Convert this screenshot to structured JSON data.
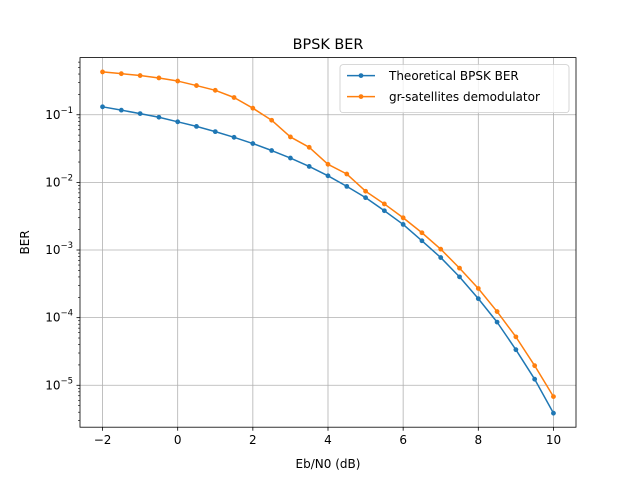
{
  "chart_data": {
    "type": "line",
    "title": "BPSK BER",
    "xlabel": "Eb/N0 (dB)",
    "ylabel": "BER",
    "xlim": [
      -2.6,
      10.6
    ],
    "ylim": [
      2.4e-06,
      0.7
    ],
    "yscale": "log",
    "grid": true,
    "legend_position": "top-right",
    "x_ticks": [
      -2,
      0,
      2,
      4,
      6,
      8,
      10
    ],
    "x_tick_labels": [
      "−2",
      "0",
      "2",
      "4",
      "6",
      "8",
      "10"
    ],
    "y_ticks": [
      1e-05,
      0.0001,
      0.001,
      0.01,
      0.1
    ],
    "y_tick_labels": [
      {
        "base": "10",
        "exp": "−5"
      },
      {
        "base": "10",
        "exp": "−4"
      },
      {
        "base": "10",
        "exp": "−3"
      },
      {
        "base": "10",
        "exp": "−2"
      },
      {
        "base": "10",
        "exp": "−1"
      }
    ],
    "x": [
      -2,
      -1.5,
      -1,
      -0.5,
      0,
      0.5,
      1,
      1.5,
      2,
      2.5,
      3,
      3.5,
      4,
      4.5,
      5,
      5.5,
      6,
      6.5,
      7,
      7.5,
      8,
      8.5,
      9,
      9.5,
      10
    ],
    "series": [
      {
        "name": "Theoretical BPSK BER",
        "color": "#1f77b4",
        "values": [
          0.131,
          0.117,
          0.104,
          0.0919,
          0.0786,
          0.0673,
          0.0563,
          0.0464,
          0.0375,
          0.0296,
          0.0229,
          0.0172,
          0.0125,
          0.00873,
          0.00595,
          0.00381,
          0.00239,
          0.00137,
          0.000773,
          0.000401,
          0.000191,
          8.59e-05,
          3.36e-05,
          1.23e-05,
          3.87e-06
        ]
      },
      {
        "name": "gr-satellites demodulator",
        "color": "#ff7f0e",
        "values": [
          0.43,
          0.405,
          0.38,
          0.35,
          0.315,
          0.27,
          0.23,
          0.18,
          0.125,
          0.083,
          0.047,
          0.033,
          0.0185,
          0.0133,
          0.0074,
          0.0048,
          0.003,
          0.0018,
          0.00103,
          0.00054,
          0.00027,
          0.000123,
          5.2e-05,
          1.95e-05,
          6.8e-06
        ]
      }
    ]
  }
}
